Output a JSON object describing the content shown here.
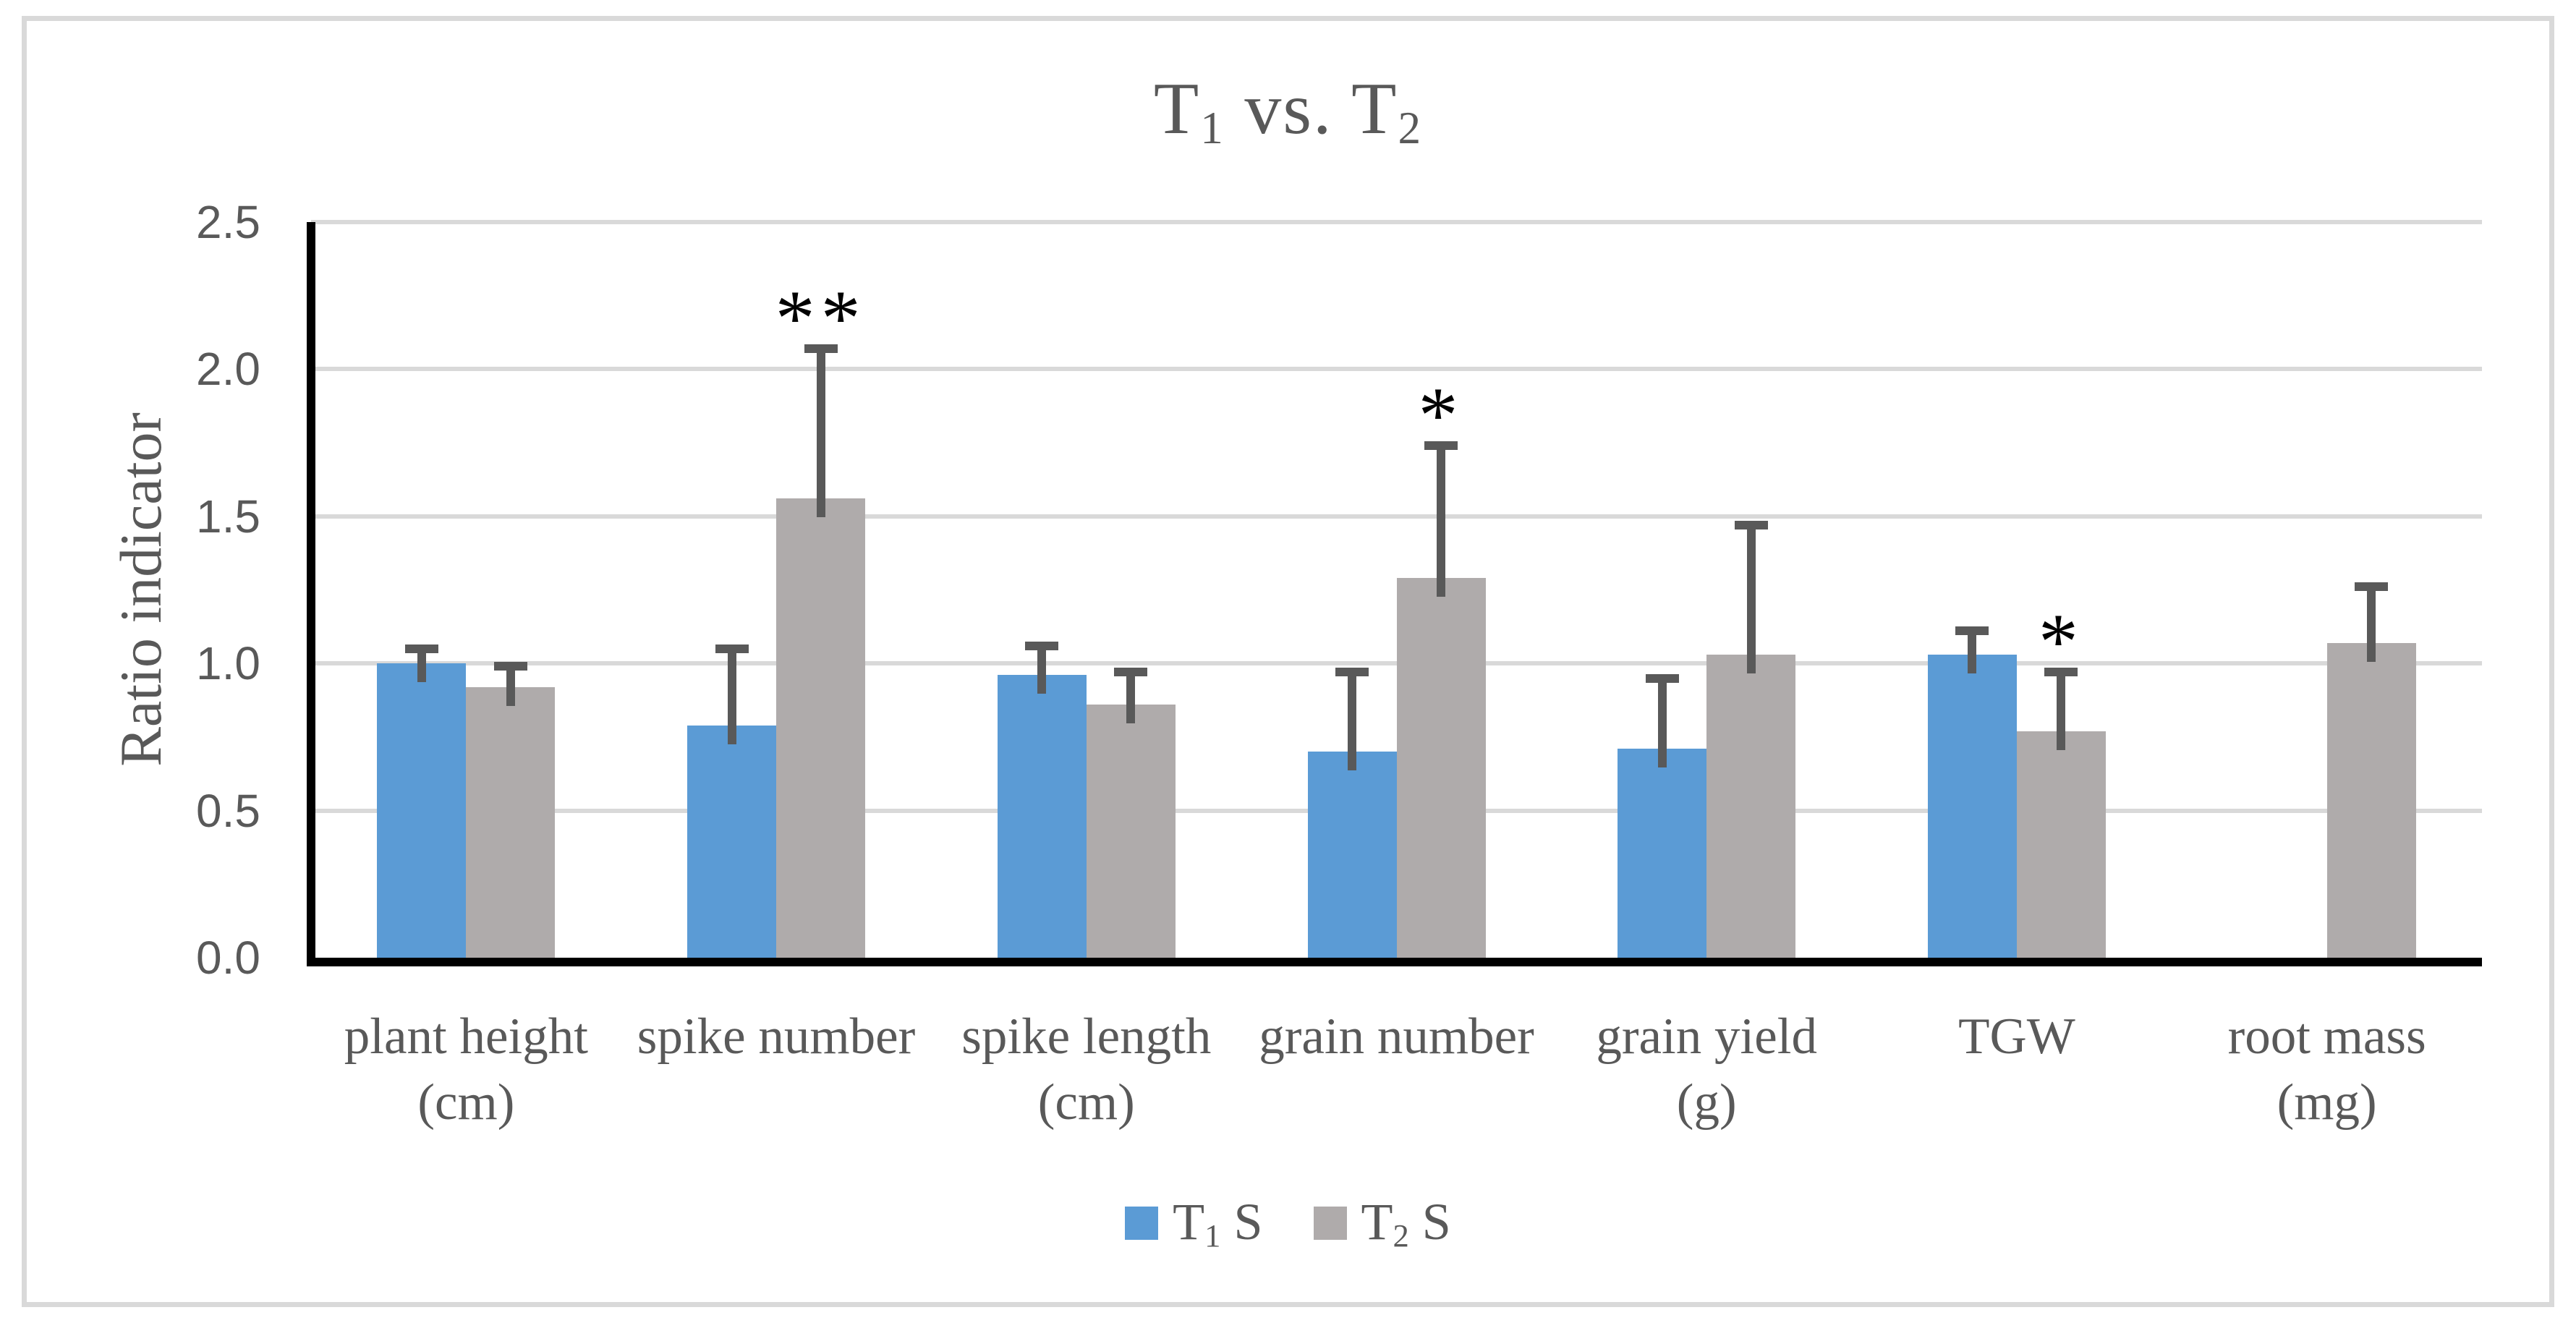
{
  "figure": {
    "background_color": "#ffffff",
    "border_color": "#d9d9d9"
  },
  "chart_data": {
    "type": "bar",
    "title": "T1 vs. T2",
    "title_parts": [
      [
        "T",
        false
      ],
      [
        "1",
        true
      ],
      [
        " vs. ",
        false
      ],
      [
        "T",
        false
      ],
      [
        "2",
        true
      ]
    ],
    "ylabel": "Ratio indicator",
    "xlabel": "",
    "ylim": [
      0,
      2.5
    ],
    "ytick_labels": [
      "0.0",
      "0.5",
      "1.0",
      "1.5",
      "2.0",
      "2.5"
    ],
    "ytick_values": [
      0,
      0.5,
      1.0,
      1.5,
      2.0,
      2.5
    ],
    "grid": true,
    "legend_position": "bottom",
    "categories": [
      "plant height (cm)",
      "spike number",
      "spike length (cm)",
      "grain number",
      "grain yield (g)",
      "TGW",
      "root mass (mg)"
    ],
    "category_label_lines": [
      [
        "plant height",
        "(cm)"
      ],
      [
        "spike number"
      ],
      [
        "spike length",
        "(cm)"
      ],
      [
        "grain number"
      ],
      [
        "grain yield",
        "(g)"
      ],
      [
        "TGW"
      ],
      [
        "root mass",
        "(mg)"
      ]
    ],
    "series": [
      {
        "name": "T1 S",
        "name_parts": [
          [
            "T",
            false
          ],
          [
            "1",
            true
          ],
          [
            " S",
            false
          ]
        ],
        "color": "#5b9bd5",
        "values": [
          1.0,
          0.79,
          0.96,
          0.7,
          0.71,
          1.03,
          null
        ],
        "errors_plus": [
          0.05,
          0.26,
          0.1,
          0.27,
          0.24,
          0.08,
          null
        ]
      },
      {
        "name": "T2 S",
        "name_parts": [
          [
            "T",
            false
          ],
          [
            "2",
            true
          ],
          [
            " S",
            false
          ]
        ],
        "color": "#afabab",
        "values": [
          0.92,
          1.56,
          0.86,
          1.29,
          1.03,
          0.77,
          1.07
        ],
        "errors_plus": [
          0.07,
          0.51,
          0.11,
          0.45,
          0.44,
          0.2,
          0.19
        ]
      }
    ],
    "annotations": [
      {
        "category_index": 1,
        "series_index": 1,
        "label": "**"
      },
      {
        "category_index": 3,
        "series_index": 1,
        "label": "*"
      },
      {
        "category_index": 5,
        "series_index": 1,
        "label": "*"
      }
    ],
    "colors": {
      "error_bar": "#595959",
      "gridline": "#d9d9d9",
      "axis_line": "#000000",
      "tick_label": "#595959",
      "axis_title": "#595959",
      "chart_title": "#595959",
      "annotation": "#000000",
      "legend_text": "#595959"
    }
  }
}
